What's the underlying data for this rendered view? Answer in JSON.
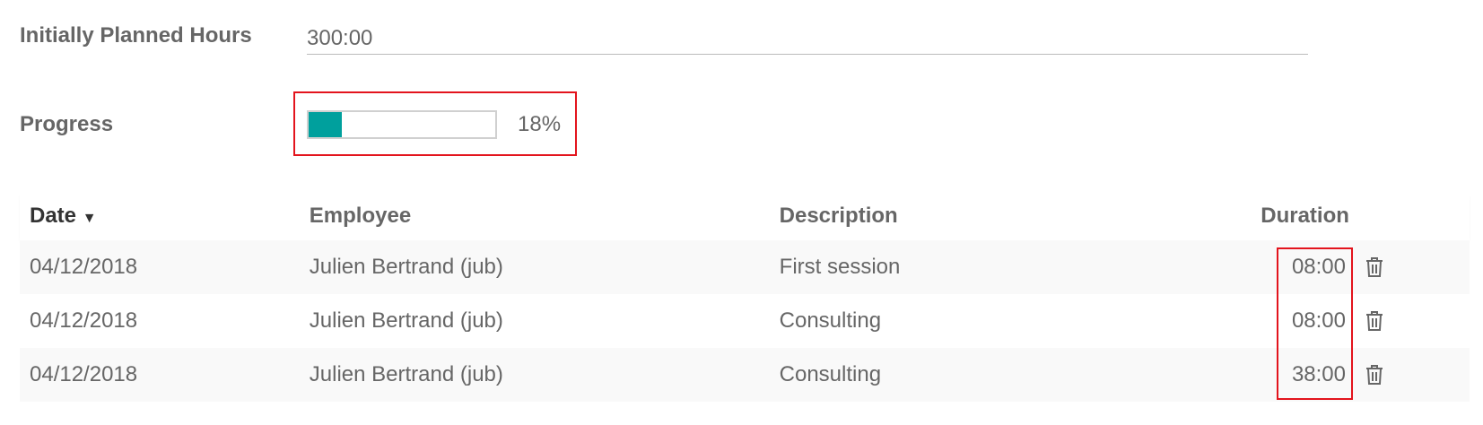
{
  "form": {
    "planned_hours_label": "Initially Planned Hours",
    "planned_hours_value": "300:00",
    "progress_label": "Progress",
    "progress_percent": 18,
    "progress_text": "18%",
    "progress_color": "#00a09d"
  },
  "table": {
    "columns": [
      "Date",
      "Employee",
      "Description",
      "Duration"
    ],
    "sort_icon": "caret-down-icon",
    "rows": [
      {
        "date": "04/12/2018",
        "employee": "Julien Bertrand (jub)",
        "description": "First session",
        "duration": "08:00"
      },
      {
        "date": "04/12/2018",
        "employee": "Julien Bertrand (jub)",
        "description": "Consulting",
        "duration": "08:00"
      },
      {
        "date": "04/12/2018",
        "employee": "Julien Bertrand (jub)",
        "description": "Consulting",
        "duration": "38:00"
      }
    ],
    "row_action_icon": "trash-icon"
  },
  "highlight_color": "#e3141d"
}
